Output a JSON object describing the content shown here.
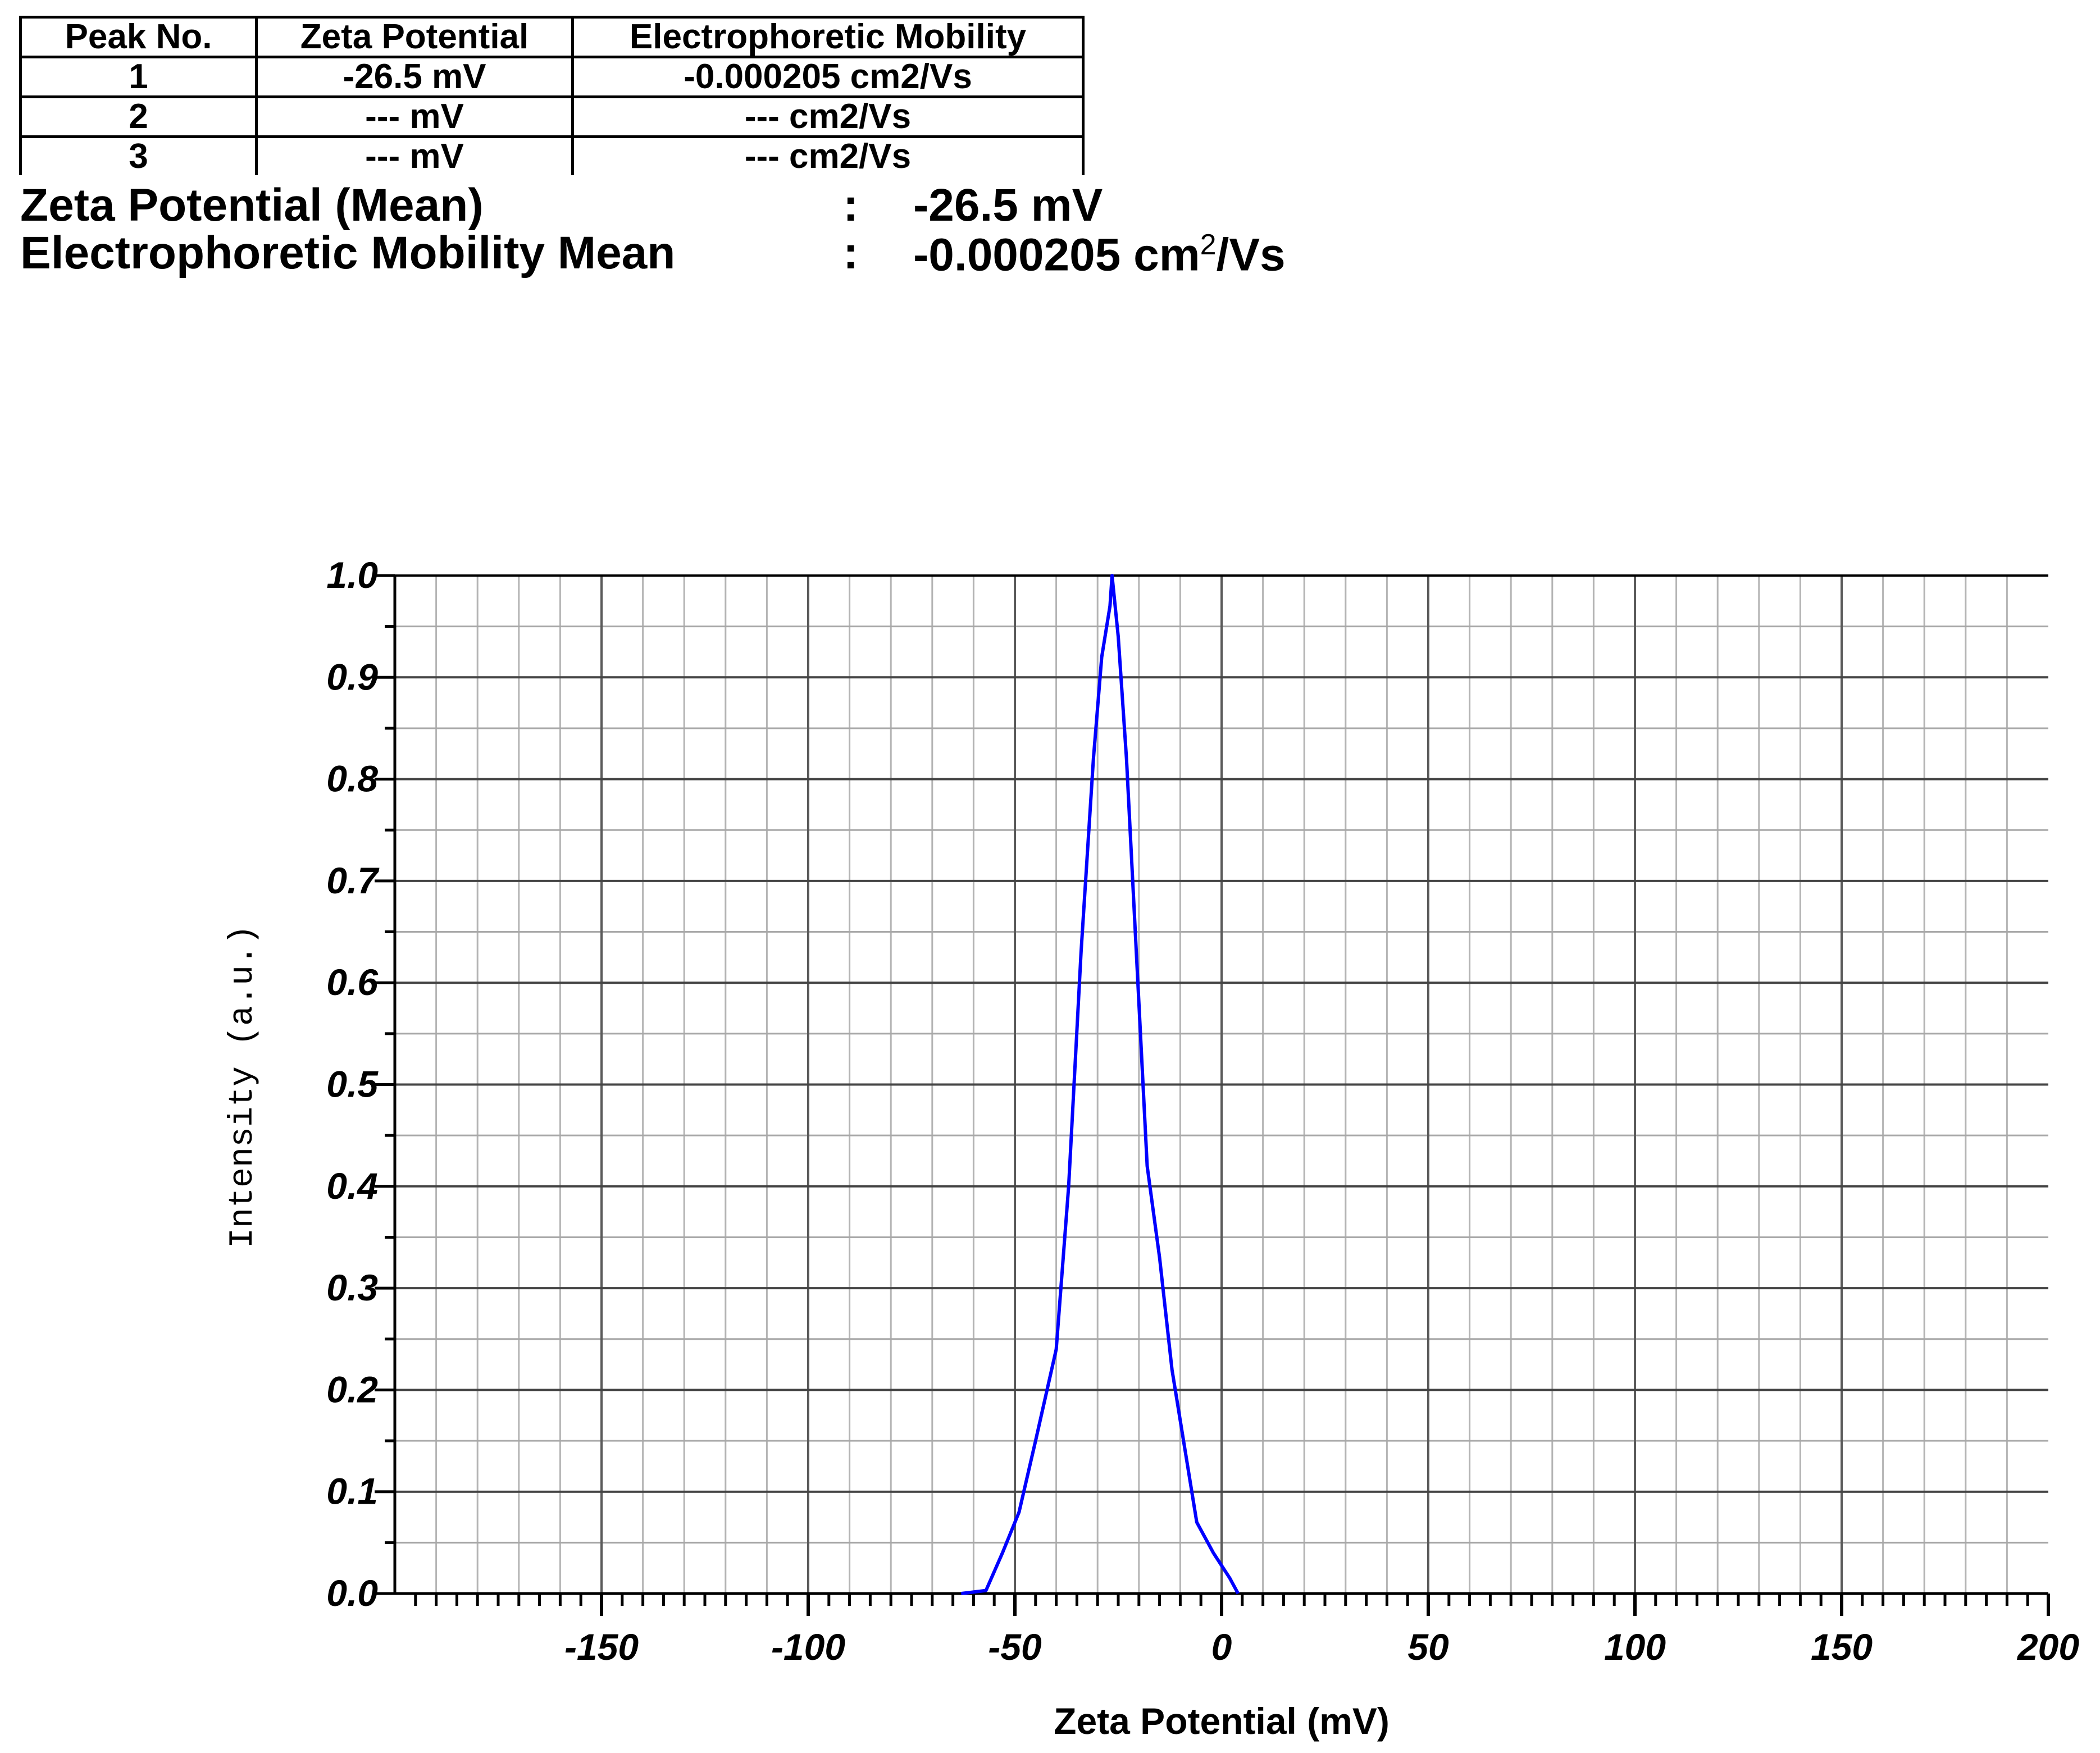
{
  "table": {
    "headers": [
      "Peak No.",
      "Zeta Potential",
      "Electrophoretic Mobility"
    ],
    "rows": [
      [
        "1",
        "-26.5 mV",
        "-0.000205 cm2/Vs"
      ],
      [
        "2",
        "--- mV",
        "--- cm2/Vs"
      ],
      [
        "3",
        "--- mV",
        "--- cm2/Vs"
      ]
    ]
  },
  "summary": {
    "zeta_label": "Zeta Potential (Mean)",
    "zeta_colon": ":",
    "zeta_value": "-26.5 mV",
    "mobility_label": "Electrophoretic Mobility Mean",
    "mobility_colon": ":",
    "mobility_value_main": "-0.000205 cm",
    "mobility_value_sup": "2",
    "mobility_value_tail": "/Vs"
  },
  "chart_data": {
    "type": "line",
    "title": "",
    "xlabel": "Zeta Potential (mV)",
    "ylabel": "Intensity (a.u.)",
    "xlim": [
      -200,
      200
    ],
    "ylim": [
      0,
      1.0
    ],
    "xticks": [
      -150,
      -100,
      -50,
      0,
      50,
      100,
      150,
      200
    ],
    "xtick_labels": [
      "-150",
      "-100",
      "-50",
      "0",
      "50",
      "100",
      "150",
      "200"
    ],
    "yticks": [
      0.0,
      0.1,
      0.2,
      0.3,
      0.4,
      0.5,
      0.6,
      0.7,
      0.8,
      0.9,
      1.0
    ],
    "ytick_labels": [
      "0.0",
      "0.1",
      "0.2",
      "0.3",
      "0.4",
      "0.5",
      "0.6",
      "0.7",
      "0.8",
      "0.9",
      "1.0"
    ],
    "grid": true,
    "line_color": "#0000ff",
    "series": [
      {
        "x": [
          -63,
          -57,
          -53,
          -49,
          -45,
          -40,
          -37,
          -34,
          -31,
          -29,
          -27,
          -26.5,
          -25,
          -23,
          -20,
          -18,
          -15,
          -12,
          -10,
          -6,
          -2,
          2,
          4
        ],
        "y": [
          0.0,
          0.003,
          0.04,
          0.08,
          0.15,
          0.24,
          0.4,
          0.63,
          0.82,
          0.92,
          0.97,
          1.0,
          0.94,
          0.82,
          0.58,
          0.42,
          0.33,
          0.22,
          0.17,
          0.07,
          0.04,
          0.015,
          0.0
        ]
      }
    ]
  }
}
